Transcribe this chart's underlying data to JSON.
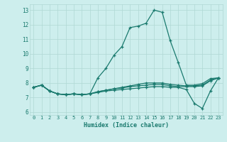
{
  "title": "",
  "xlabel": "Humidex (Indice chaleur)",
  "background_color": "#cdeeed",
  "grid_color": "#b0d8d4",
  "line_color": "#1a7a6e",
  "xlim": [
    -0.5,
    23.5
  ],
  "ylim": [
    5.8,
    13.4
  ],
  "yticks": [
    6,
    7,
    8,
    9,
    10,
    11,
    12,
    13
  ],
  "xticks": [
    0,
    1,
    2,
    3,
    4,
    5,
    6,
    7,
    8,
    9,
    10,
    11,
    12,
    13,
    14,
    15,
    16,
    17,
    18,
    19,
    20,
    21,
    22,
    23
  ],
  "series": [
    [
      7.7,
      7.85,
      7.45,
      7.25,
      7.2,
      7.25,
      7.2,
      7.25,
      8.35,
      9.0,
      9.9,
      10.5,
      11.8,
      11.9,
      12.1,
      13.0,
      12.85,
      10.9,
      9.4,
      7.85,
      7.85,
      7.95,
      8.3,
      8.35
    ],
    [
      7.7,
      7.85,
      7.45,
      7.25,
      7.2,
      7.25,
      7.2,
      7.25,
      7.4,
      7.5,
      7.6,
      7.7,
      7.8,
      7.9,
      8.0,
      8.0,
      8.0,
      7.9,
      7.85,
      7.8,
      7.8,
      7.85,
      8.2,
      8.35
    ],
    [
      7.7,
      7.85,
      7.45,
      7.25,
      7.2,
      7.25,
      7.2,
      7.25,
      7.4,
      7.5,
      7.6,
      7.65,
      7.75,
      7.8,
      7.85,
      7.9,
      7.9,
      7.8,
      7.75,
      7.75,
      7.75,
      7.8,
      8.15,
      8.35
    ],
    [
      7.7,
      7.85,
      7.45,
      7.25,
      7.2,
      7.25,
      7.2,
      7.25,
      7.35,
      7.45,
      7.5,
      7.55,
      7.6,
      7.65,
      7.7,
      7.75,
      7.75,
      7.7,
      7.7,
      7.55,
      6.6,
      6.25,
      7.45,
      8.35
    ]
  ]
}
